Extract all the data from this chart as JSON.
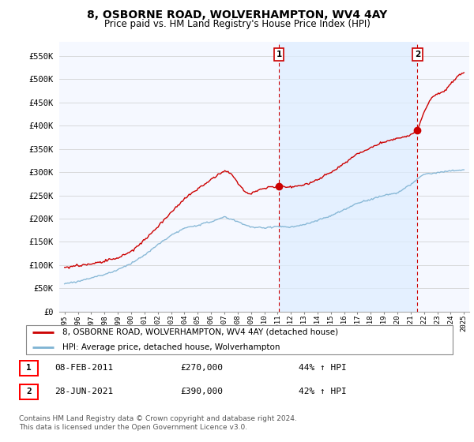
{
  "title": "8, OSBORNE ROAD, WOLVERHAMPTON, WV4 4AY",
  "subtitle": "Price paid vs. HM Land Registry's House Price Index (HPI)",
  "red_label": "8, OSBORNE ROAD, WOLVERHAMPTON, WV4 4AY (detached house)",
  "blue_label": "HPI: Average price, detached house, Wolverhampton",
  "transaction1_date": "08-FEB-2011",
  "transaction1_price": "£270,000",
  "transaction1_hpi": "44% ↑ HPI",
  "transaction2_date": "28-JUN-2021",
  "transaction2_price": "£390,000",
  "transaction2_hpi": "42% ↑ HPI",
  "footer": "Contains HM Land Registry data © Crown copyright and database right 2024.\nThis data is licensed under the Open Government Licence v3.0.",
  "ylim": [
    0,
    580000
  ],
  "yticks": [
    0,
    50000,
    100000,
    150000,
    200000,
    250000,
    300000,
    350000,
    400000,
    450000,
    500000,
    550000
  ],
  "ytick_labels": [
    "£0",
    "£50K",
    "£100K",
    "£150K",
    "£200K",
    "£250K",
    "£300K",
    "£350K",
    "£400K",
    "£450K",
    "£500K",
    "£550K"
  ],
  "background_color": "#ffffff",
  "plot_bg_color": "#f5f8ff",
  "red_color": "#cc0000",
  "blue_color": "#7fb3d3",
  "shade_color": "#ddeeff",
  "dashed_color": "#cc0000",
  "marker1_x": 2011.1,
  "marker1_y": 270000,
  "marker2_x": 2021.5,
  "marker2_y": 390000,
  "xmin": 1995,
  "xmax": 2025,
  "title_fontsize": 10,
  "subtitle_fontsize": 8.5
}
